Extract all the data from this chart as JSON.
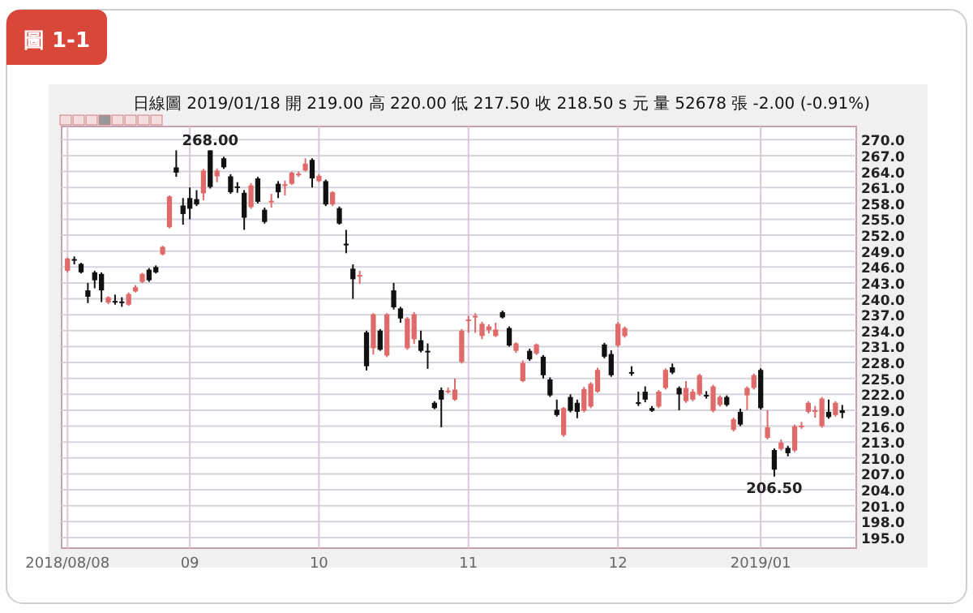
{
  "chart_data": {
    "type": "candlestick",
    "title": "日線圖  2019/01/18  開 219.00  高 220.00  低 217.50  收 218.50  s 元  量 52678 張  -2.00 (-0.91%)",
    "annotations": [
      "圖 1-1",
      {
        "text": "268.00",
        "y": 268
      },
      {
        "text": "206.50",
        "y": 206.5
      }
    ],
    "categories": [
      "2018/08/08",
      null,
      null,
      null,
      null,
      null,
      null,
      null,
      null,
      null,
      null,
      null,
      null,
      null,
      null,
      null,
      null,
      null,
      "09",
      null,
      null,
      null,
      null,
      null,
      null,
      null,
      null,
      null,
      null,
      null,
      null,
      null,
      null,
      null,
      null,
      null,
      null,
      "10",
      null,
      null,
      null,
      null,
      null,
      null,
      null,
      null,
      null,
      null,
      null,
      null,
      null,
      null,
      null,
      null,
      null,
      null,
      null,
      null,
      null,
      "11",
      null,
      null,
      null,
      null,
      null,
      null,
      null,
      null,
      null,
      null,
      null,
      null,
      null,
      null,
      null,
      null,
      null,
      null,
      null,
      null,
      null,
      "12",
      null,
      null,
      null,
      null,
      null,
      null,
      null,
      null,
      null,
      null,
      null,
      null,
      null,
      null,
      null,
      null,
      null,
      null,
      null,
      null,
      "2019/01",
      null,
      null,
      null,
      null,
      null,
      null,
      null,
      null,
      null,
      null,
      null,
      null
    ],
    "ohlc": [
      [
        245.3,
        247.8,
        245,
        247.6
      ],
      [
        247.5,
        248,
        246.5,
        247.3
      ],
      [
        246.6,
        246.8,
        244.8,
        245
      ],
      [
        241.6,
        243,
        239.2,
        240.4
      ],
      [
        245,
        245.3,
        242,
        243.5
      ],
      [
        244.7,
        245,
        239.4,
        241.6
      ],
      [
        239.3,
        240.5,
        239,
        240.3
      ],
      [
        239.6,
        240.8,
        238.9,
        239.5
      ],
      [
        239.5,
        240.3,
        238.5,
        239.4
      ],
      [
        238.9,
        241.2,
        238.7,
        240.9
      ],
      [
        241.4,
        242.6,
        241.2,
        242.2
      ],
      [
        243.2,
        244.9,
        243,
        244.7
      ],
      [
        245.5,
        245.8,
        243.2,
        243.5
      ],
      [
        246,
        246.3,
        244.8,
        245
      ],
      [
        248.4,
        250,
        248.2,
        249.8
      ],
      [
        253.5,
        259.5,
        253.3,
        259.3
      ],
      [
        264.8,
        268,
        263,
        263.8
      ],
      [
        257.6,
        259,
        254,
        256
      ],
      [
        259,
        261,
        255,
        257
      ],
      [
        258.8,
        260.5,
        257.5,
        257.8
      ],
      [
        259.9,
        264.5,
        258.6,
        264.2
      ],
      [
        268,
        268,
        260.8,
        261.1
      ],
      [
        263.1,
        264.6,
        262,
        264.2
      ],
      [
        266.5,
        266.8,
        264.5,
        264.8
      ],
      [
        263.1,
        263.5,
        259.8,
        260.1
      ],
      [
        261.2,
        262,
        260,
        261.1
      ],
      [
        260,
        260.5,
        253,
        255.3
      ],
      [
        257.3,
        261.8,
        257,
        261.4
      ],
      [
        262.7,
        263,
        258,
        258.3
      ],
      [
        256.8,
        257.2,
        254.2,
        254.5
      ],
      [
        258.4,
        259.8,
        257.2,
        258.5
      ],
      [
        261.7,
        262.2,
        259,
        260.1
      ],
      [
        261.5,
        262.3,
        259.5,
        261.6
      ],
      [
        261.7,
        264,
        261.5,
        263.8
      ],
      [
        263.3,
        264,
        263,
        263.6
      ],
      [
        264.2,
        266.5,
        264,
        265.5
      ],
      [
        266.2,
        266.5,
        261,
        262.7
      ],
      [
        262.2,
        263.5,
        262,
        263.2
      ],
      [
        262.2,
        262.5,
        257.5,
        257.8
      ],
      [
        257.8,
        260.3,
        257.5,
        260.1
      ],
      [
        257.1,
        257.4,
        254,
        254.2
      ],
      [
        250.4,
        253,
        248.6,
        250.3
      ],
      [
        245.7,
        246.5,
        240,
        243.7
      ],
      [
        244.3,
        245.3,
        242.8,
        244.5
      ],
      [
        233.7,
        234,
        226.5,
        227.3
      ],
      [
        230.7,
        237.3,
        229.5,
        237.1
      ],
      [
        234,
        234.3,
        230.2,
        230.4
      ],
      [
        229.3,
        237.3,
        229,
        237.1
      ],
      [
        241.6,
        243,
        238,
        238.4
      ],
      [
        238.2,
        238.5,
        235.5,
        236.3
      ],
      [
        230.7,
        236.6,
        230.4,
        236.3
      ],
      [
        232.4,
        237.5,
        231.5,
        237.1
      ],
      [
        232.2,
        234,
        229.9,
        230.2
      ],
      [
        230.2,
        231.6,
        226.8,
        230.1
      ],
      [
        220.4,
        220.7,
        219.2,
        219.4
      ],
      [
        222.8,
        223.3,
        215.8,
        221
      ],
      [
        222.6,
        223.3,
        222.2,
        222.7
      ],
      [
        221,
        225,
        220.8,
        222.9
      ],
      [
        228.1,
        234.3,
        227.8,
        234
      ],
      [
        236,
        236.8,
        233.6,
        236.1
      ],
      [
        236.7,
        237.3,
        233.6,
        236.8
      ],
      [
        233,
        235.7,
        232.4,
        235.3
      ],
      [
        234.1,
        235.2,
        233.5,
        234.8
      ],
      [
        233,
        235.5,
        232.8,
        234.2
      ],
      [
        237.5,
        237.8,
        236.3,
        236.5
      ],
      [
        234.5,
        234.8,
        231,
        231.2
      ],
      [
        230.2,
        231.8,
        229.8,
        231.6
      ],
      [
        224.5,
        228.4,
        224.3,
        227.9
      ],
      [
        230.2,
        230.6,
        228.3,
        228.6
      ],
      [
        229.7,
        231.6,
        229.4,
        231.4
      ],
      [
        229.1,
        229.4,
        225,
        225.6
      ],
      [
        224.8,
        225.2,
        221.5,
        221.8
      ],
      [
        219.1,
        221,
        217.8,
        218.1
      ],
      [
        214.3,
        219.6,
        214,
        219.4
      ],
      [
        221.5,
        222,
        218.6,
        218.9
      ],
      [
        220.4,
        221,
        217.5,
        218.7
      ],
      [
        218.9,
        223.4,
        218.6,
        223
      ],
      [
        219.7,
        224.3,
        219.4,
        224
      ],
      [
        222.5,
        227,
        222.3,
        226.6
      ],
      [
        231.4,
        231.7,
        228.8,
        229.1
      ],
      [
        229.6,
        230.3,
        225.3,
        225.6
      ],
      [
        231.2,
        235.6,
        230.9,
        235.3
      ],
      [
        233,
        234.8,
        232.7,
        234.5
      ],
      [
        226.2,
        227.3,
        225.5,
        226.1
      ],
      [
        220.5,
        222.5,
        219.8,
        220.4
      ],
      [
        222.5,
        223.5,
        220.5,
        221
      ],
      [
        219.4,
        219.8,
        218.7,
        218.9
      ],
      [
        219.7,
        222.8,
        219.4,
        222.5
      ],
      [
        223.2,
        226.9,
        222.9,
        226.6
      ],
      [
        227.1,
        227.8,
        225.8,
        226.1
      ],
      [
        223.2,
        223.5,
        219,
        222
      ],
      [
        220.7,
        224.5,
        220.4,
        223.2
      ],
      [
        221,
        223,
        220.7,
        222.5
      ],
      [
        222,
        225.9,
        221.7,
        225.6
      ],
      [
        221.9,
        222.6,
        221.2,
        221.8
      ],
      [
        218.9,
        223.8,
        218.6,
        223.5
      ],
      [
        220,
        221.8,
        219.7,
        221.5
      ],
      [
        221.5,
        221.8,
        219.7,
        220
      ],
      [
        215.3,
        217.6,
        215,
        217.3
      ],
      [
        218.7,
        219.3,
        216,
        216.3
      ],
      [
        221.8,
        223.5,
        219,
        223.2
      ],
      [
        223.2,
        225.9,
        222.9,
        225.6
      ],
      [
        226.6,
        226.9,
        219.1,
        219.4
      ],
      [
        213.8,
        219,
        213.5,
        215.8
      ],
      [
        211.5,
        211.8,
        206.5,
        207.8
      ],
      [
        211.7,
        213.5,
        211.4,
        212.9
      ],
      [
        211.9,
        212.3,
        210.3,
        210.9
      ],
      [
        211.4,
        216.3,
        211.1,
        216
      ],
      [
        216,
        216.8,
        215.5,
        216.1
      ],
      [
        218.7,
        220.7,
        218.4,
        220.4
      ],
      [
        218.9,
        219.8,
        217.6,
        219
      ],
      [
        216,
        221.5,
        215.7,
        221.2
      ],
      [
        218.7,
        221,
        217.4,
        217.7
      ],
      [
        218.1,
        220.7,
        217.8,
        220.4
      ],
      [
        219,
        220,
        217.5,
        218.5
      ]
    ],
    "colors": [
      "#e06a6a",
      "#111111",
      "#111111",
      "#111111",
      "#111111",
      "#111111",
      "#e06a6a",
      "#111111",
      "#111111",
      "#e06a6a",
      "#e06a6a",
      "#e06a6a",
      "#111111",
      "#111111",
      "#e06a6a",
      "#e06a6a",
      "#111111",
      "#111111",
      "#111111",
      "#111111",
      "#e06a6a",
      "#111111",
      "#e06a6a",
      "#111111",
      "#111111",
      "#111111",
      "#111111",
      "#e06a6a",
      "#111111",
      "#111111",
      "#e06a6a",
      "#111111",
      "#e06a6a",
      "#e06a6a",
      "#e06a6a",
      "#e06a6a",
      "#111111",
      "#e06a6a",
      "#111111",
      "#e06a6a",
      "#111111",
      "#111111",
      "#111111",
      "#e06a6a",
      "#111111",
      "#e06a6a",
      "#111111",
      "#e06a6a",
      "#111111",
      "#111111",
      "#e06a6a",
      "#e06a6a",
      "#111111",
      "#111111",
      "#111111",
      "#111111",
      "#e06a6a",
      "#e06a6a",
      "#e06a6a",
      "#e06a6a",
      "#e06a6a",
      "#e06a6a",
      "#e06a6a",
      "#e06a6a",
      "#111111",
      "#111111",
      "#e06a6a",
      "#e06a6a",
      "#111111",
      "#e06a6a",
      "#111111",
      "#111111",
      "#111111",
      "#e06a6a",
      "#111111",
      "#111111",
      "#e06a6a",
      "#e06a6a",
      "#e06a6a",
      "#111111",
      "#111111",
      "#e06a6a",
      "#e06a6a",
      "#111111",
      "#111111",
      "#111111",
      "#111111",
      "#e06a6a",
      "#e06a6a",
      "#111111",
      "#111111",
      "#e06a6a",
      "#e06a6a",
      "#e06a6a",
      "#111111",
      "#e06a6a",
      "#e06a6a",
      "#111111",
      "#e06a6a",
      "#111111",
      "#e06a6a",
      "#e06a6a",
      "#111111",
      "#e06a6a",
      "#111111",
      "#e06a6a",
      "#111111",
      "#e06a6a",
      "#e06a6a",
      "#e06a6a",
      "#e06a6a",
      "#e06a6a",
      "#111111",
      "#e06a6a",
      "#111111"
    ],
    "ylim": [
      193,
      272.5
    ],
    "yticks": [
      {
        "value": 195,
        "label": "195.0"
      },
      {
        "value": 198,
        "label": "198.0"
      },
      {
        "value": 201,
        "label": "201.0"
      },
      {
        "value": 204,
        "label": "204.0"
      },
      {
        "value": 207,
        "label": "207.0"
      },
      {
        "value": 210,
        "label": "210.0"
      },
      {
        "value": 213,
        "label": "213.0"
      },
      {
        "value": 216,
        "label": "216.0"
      },
      {
        "value": 219,
        "label": "219.0"
      },
      {
        "value": 222,
        "label": "222.0"
      },
      {
        "value": 225,
        "label": "225.0"
      },
      {
        "value": 228,
        "label": "228.0"
      },
      {
        "value": 231,
        "label": "231.0"
      },
      {
        "value": 234,
        "label": "234.0"
      },
      {
        "value": 237,
        "label": "237.0"
      },
      {
        "value": 240,
        "label": "240.0"
      },
      {
        "value": 243,
        "label": "243.0"
      },
      {
        "value": 246,
        "label": "246.0"
      },
      {
        "value": 249,
        "label": "249.0"
      },
      {
        "value": 252,
        "label": "252.0"
      },
      {
        "value": 255,
        "label": "255.0"
      },
      {
        "value": 258,
        "label": "258.0"
      },
      {
        "value": 261,
        "label": "261.0"
      },
      {
        "value": 264,
        "label": "264.0"
      },
      {
        "value": 267,
        "label": "267.0"
      },
      {
        "value": 270,
        "label": "270.0"
      }
    ],
    "grid": true
  }
}
